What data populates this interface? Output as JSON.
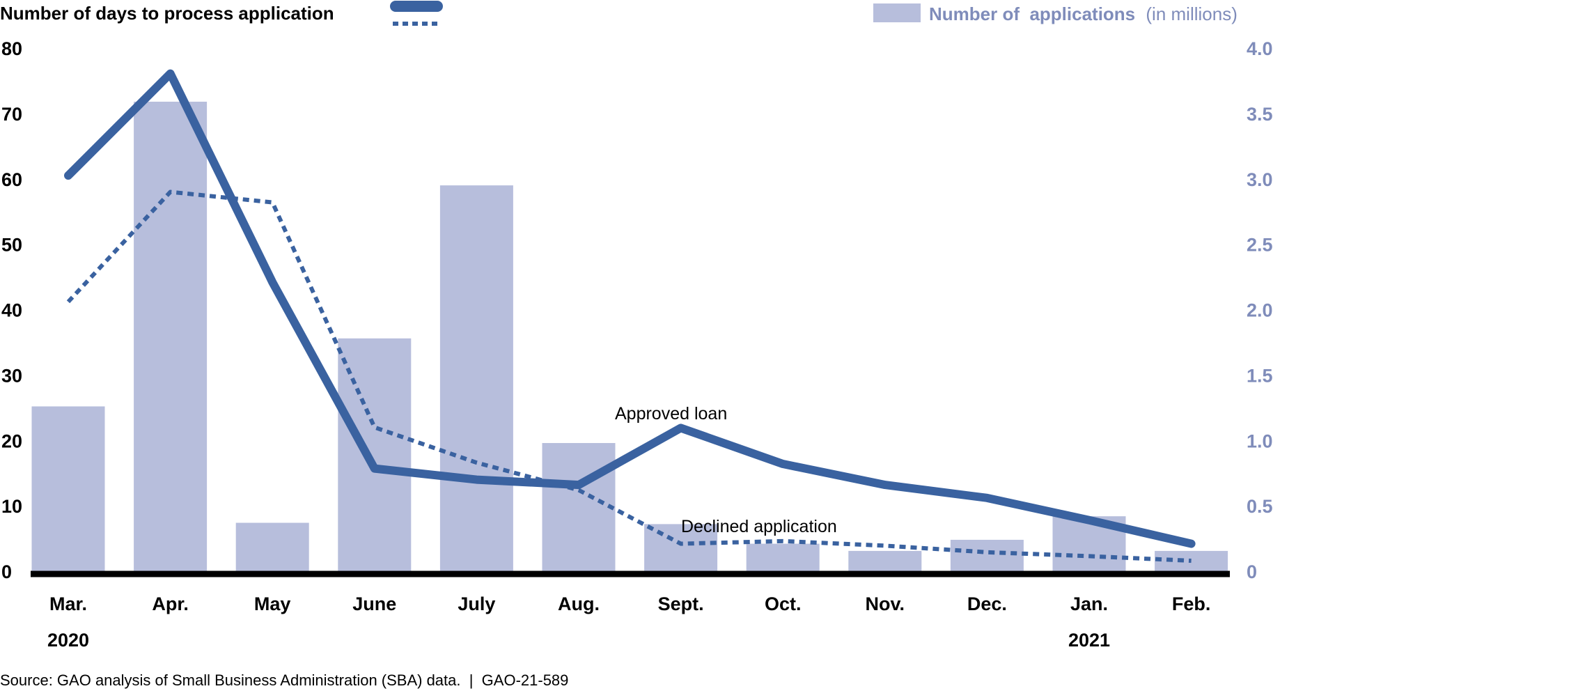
{
  "colors": {
    "line": "#3a62a0",
    "bar": "#b7bedc",
    "right_axis": "#7f8cba",
    "axis": "#000000"
  },
  "chart_data": {
    "type": "bar+line",
    "title": "",
    "categories": [
      "Mar.",
      "Apr.",
      "May",
      "June",
      "July",
      "Aug.",
      "Sept.",
      "Oct.",
      "Nov.",
      "Dec.",
      "Jan.",
      "Feb."
    ],
    "years": [
      {
        "label": "2020",
        "category_index": 0
      },
      {
        "label": "2021",
        "category_index": 10
      }
    ],
    "left_axis": {
      "label": "Number of days to process application",
      "ylim": [
        0,
        80
      ],
      "ticks": [
        0,
        10,
        20,
        30,
        40,
        50,
        60,
        70,
        80
      ]
    },
    "right_axis": {
      "label_bold": "Number of  applications",
      "label_normal": "(in millions)",
      "ylim": [
        0,
        4.0
      ],
      "ticks": [
        "0",
        "0.5",
        "1.0",
        "1.5",
        "2.0",
        "2.5",
        "3.0",
        "3.5",
        "4.0"
      ]
    },
    "bars": {
      "name": "Number of applications (in millions)",
      "axis": "right",
      "values": [
        1.26,
        3.59,
        0.37,
        1.78,
        2.95,
        0.98,
        0.36,
        0.21,
        0.155,
        0.24,
        0.42,
        0.155
      ]
    },
    "series": [
      {
        "name": "Approved loan",
        "axis": "left",
        "style": "solid",
        "values": [
          60.5,
          76.1,
          44.2,
          15.7,
          14.0,
          13.2,
          21.9,
          16.4,
          13.2,
          11.2,
          7.8,
          4.2
        ]
      },
      {
        "name": "Declined application",
        "axis": "left",
        "style": "dashed",
        "values": [
          41.2,
          58.0,
          56.4,
          22.0,
          16.6,
          12.4,
          4.2,
          4.6,
          3.9,
          2.9,
          2.3,
          1.6
        ]
      }
    ],
    "annotations": [
      "Approved loan",
      "Declined application"
    ],
    "grid": false
  },
  "source": "Source: GAO analysis of Small Business Administration (SBA) data.  |  GAO-21-589"
}
